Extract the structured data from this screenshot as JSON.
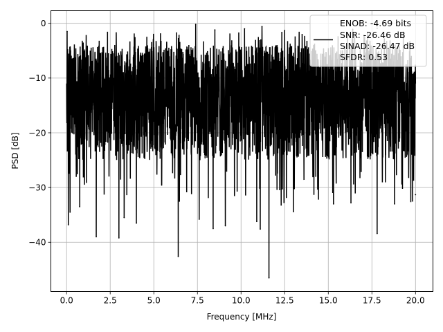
{
  "chart_data": {
    "type": "line",
    "xlabel": "Frequency [MHz]",
    "ylabel": "PSD [dB]",
    "xlim": [
      -0.9,
      21.0
    ],
    "ylim": [
      -49.0,
      2.3
    ],
    "xticks": [
      0.0,
      2.5,
      5.0,
      7.5,
      10.0,
      12.5,
      15.0,
      17.5,
      20.0
    ],
    "xtick_labels": [
      "0.0",
      "2.5",
      "5.0",
      "7.5",
      "10.0",
      "12.5",
      "15.0",
      "17.5",
      "20.0"
    ],
    "yticks": [
      0,
      -10,
      -20,
      -30,
      -40
    ],
    "ytick_labels": [
      "0",
      "−10",
      "−20",
      "−30",
      "−40"
    ],
    "grid": true,
    "legend_position": "top-right",
    "series": [
      {
        "color": "#000000",
        "x_range": [
          0.0,
          20.0
        ],
        "typical_band_db": [
          -25.0,
          -4.0
        ],
        "peaks": [
          {
            "x": 0.03,
            "y": -1.5
          },
          {
            "x": 7.4,
            "y": -0.2
          },
          {
            "x": 8.5,
            "y": -1.2
          },
          {
            "x": 10.2,
            "y": -1.0
          },
          {
            "x": 11.2,
            "y": -0.6
          },
          {
            "x": 12.5,
            "y": -1.3
          },
          {
            "x": 16.4,
            "y": -1.1
          },
          {
            "x": 17.8,
            "y": -0.9
          },
          {
            "x": 19.3,
            "y": -1.6
          }
        ],
        "dips": [
          {
            "x": 0.1,
            "y": -36.8
          },
          {
            "x": 0.2,
            "y": -34.5
          },
          {
            "x": 0.75,
            "y": -33.5
          },
          {
            "x": 1.7,
            "y": -39.0
          },
          {
            "x": 3.0,
            "y": -39.2
          },
          {
            "x": 3.3,
            "y": -35.5
          },
          {
            "x": 4.0,
            "y": -36.5
          },
          {
            "x": 6.4,
            "y": -42.6
          },
          {
            "x": 7.6,
            "y": -35.8
          },
          {
            "x": 8.4,
            "y": -37.5
          },
          {
            "x": 9.1,
            "y": -37.0
          },
          {
            "x": 10.9,
            "y": -36.2
          },
          {
            "x": 11.1,
            "y": -37.6
          },
          {
            "x": 11.6,
            "y": -46.5
          },
          {
            "x": 12.3,
            "y": -33.2
          },
          {
            "x": 13.0,
            "y": -34.4
          },
          {
            "x": 15.3,
            "y": -33.0
          },
          {
            "x": 16.3,
            "y": -32.8
          },
          {
            "x": 17.8,
            "y": -38.4
          },
          {
            "x": 18.8,
            "y": -33.0
          },
          {
            "x": 20.0,
            "y": -31.3
          }
        ]
      }
    ],
    "legend_entries": [
      {
        "label": "ENOB: -4.69 bits",
        "swatch": false
      },
      {
        "label": "SNR: -26.46 dB",
        "swatch": true
      },
      {
        "label": "SINAD: -26.47 dB",
        "swatch": false
      },
      {
        "label": "SFDR: 0.53",
        "swatch": false
      }
    ]
  }
}
